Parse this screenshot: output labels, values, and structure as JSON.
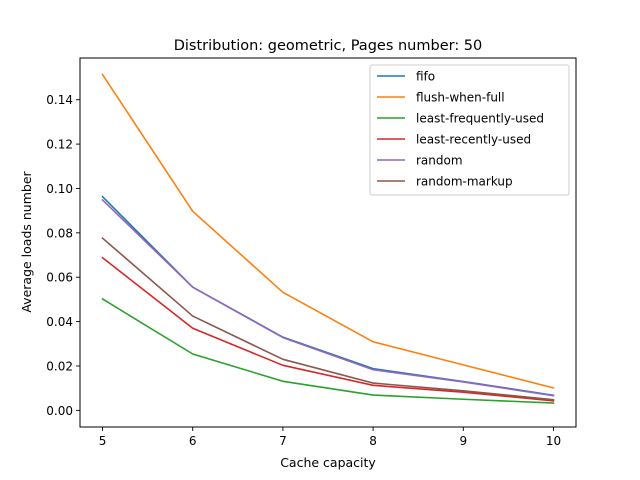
{
  "chart_data": {
    "type": "line",
    "title": "Distribution: geometric, Pages number: 50",
    "xlabel": "Cache capacity",
    "ylabel": "Average loads number",
    "x": [
      5,
      6,
      7,
      8,
      9,
      10
    ],
    "xlim": [
      4.75,
      10.25
    ],
    "ylim": [
      -0.0075,
      0.1588
    ],
    "xticks": [
      "5",
      "6",
      "7",
      "8",
      "9",
      "10"
    ],
    "yticks": [
      "0.00",
      "0.02",
      "0.04",
      "0.06",
      "0.08",
      "0.10",
      "0.12",
      "0.14"
    ],
    "legend_position": "top-right",
    "grid": false,
    "series": [
      {
        "name": "fifo",
        "color": "#1f77b4",
        "values": [
          0.0963,
          0.0555,
          0.033,
          0.0188,
          0.013,
          0.0068
        ]
      },
      {
        "name": "flush-when-full",
        "color": "#ff7f0e",
        "values": [
          0.1513,
          0.0897,
          0.0532,
          0.0309,
          0.0205,
          0.0101
        ]
      },
      {
        "name": "least-frequently-used",
        "color": "#2ca02c",
        "values": [
          0.0502,
          0.0254,
          0.0131,
          0.0069,
          0.005,
          0.0033
        ]
      },
      {
        "name": "least-recently-used",
        "color": "#d62728",
        "values": [
          0.0688,
          0.037,
          0.0203,
          0.0113,
          0.0082,
          0.0043
        ]
      },
      {
        "name": "random",
        "color": "#9467bd",
        "values": [
          0.0948,
          0.0555,
          0.0328,
          0.0183,
          0.0128,
          0.0066
        ]
      },
      {
        "name": "random-markup",
        "color": "#8c564b",
        "values": [
          0.0776,
          0.0425,
          0.023,
          0.0123,
          0.0088,
          0.0048
        ]
      }
    ]
  }
}
